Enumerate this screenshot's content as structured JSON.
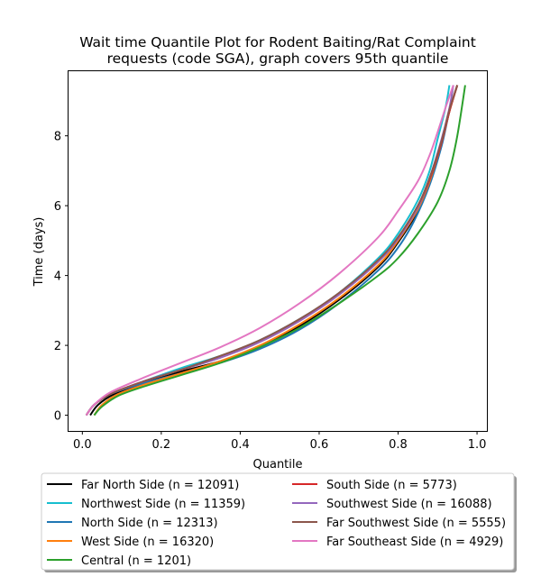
{
  "chart_data": {
    "type": "line",
    "title_lines": [
      "Wait time Quantile Plot for Rodent Baiting/Rat Complaint",
      "requests (code SGA), graph covers 95th quantile"
    ],
    "xlabel": "Quantile",
    "ylabel": "Time (days)",
    "xlim": [
      -0.035,
      1.025
    ],
    "ylim": [
      -0.45,
      9.85
    ],
    "x_ticks": [
      0.0,
      0.2,
      0.4,
      0.6,
      0.8,
      1.0
    ],
    "x_tick_labels": [
      "0.0",
      "0.2",
      "0.4",
      "0.6",
      "0.8",
      "1.0"
    ],
    "y_ticks": [
      0,
      2,
      4,
      6,
      8
    ],
    "y_tick_labels": [
      "0",
      "2",
      "4",
      "6",
      "8"
    ],
    "grid": false,
    "legend_position": "below plot, two columns",
    "series": [
      {
        "name": "Far North Side (n = 12091)",
        "color": "#000000",
        "x": [
          0.02,
          0.04,
          0.08,
          0.15,
          0.25,
          0.35,
          0.45,
          0.55,
          0.65,
          0.75,
          0.8,
          0.85,
          0.88,
          0.91,
          0.93,
          0.95
        ],
        "y": [
          0.0,
          0.3,
          0.6,
          0.9,
          1.25,
          1.55,
          1.95,
          2.55,
          3.3,
          4.25,
          4.95,
          5.85,
          6.7,
          7.8,
          8.7,
          9.45
        ]
      },
      {
        "name": "Northwest Side (n = 11359)",
        "color": "#17becf",
        "x": [
          0.01,
          0.03,
          0.07,
          0.15,
          0.25,
          0.35,
          0.45,
          0.55,
          0.65,
          0.75,
          0.8,
          0.85,
          0.88,
          0.9,
          0.92,
          0.93
        ],
        "y": [
          0.0,
          0.3,
          0.6,
          0.95,
          1.35,
          1.7,
          2.15,
          2.75,
          3.5,
          4.5,
          5.2,
          6.15,
          7.0,
          7.9,
          8.8,
          9.45
        ]
      },
      {
        "name": "North Side (n = 12313)",
        "color": "#1f77b4",
        "x": [
          0.01,
          0.03,
          0.07,
          0.15,
          0.25,
          0.35,
          0.45,
          0.55,
          0.65,
          0.75,
          0.8,
          0.84,
          0.88,
          0.91,
          0.93,
          0.95
        ],
        "y": [
          0.0,
          0.3,
          0.6,
          0.9,
          1.2,
          1.5,
          1.9,
          2.45,
          3.2,
          4.15,
          4.8,
          5.55,
          6.6,
          7.7,
          8.7,
          9.45
        ]
      },
      {
        "name": "West Side (n = 16320)",
        "color": "#ff7f0e",
        "x": [
          0.03,
          0.05,
          0.09,
          0.15,
          0.25,
          0.35,
          0.45,
          0.55,
          0.65,
          0.75,
          0.8,
          0.85,
          0.88,
          0.91,
          0.93,
          0.95
        ],
        "y": [
          0.0,
          0.3,
          0.6,
          0.85,
          1.2,
          1.55,
          2.0,
          2.6,
          3.35,
          4.3,
          5.0,
          5.9,
          6.7,
          7.8,
          8.7,
          9.45
        ]
      },
      {
        "name": "Central (n = 1201)",
        "color": "#2ca02c",
        "x": [
          0.03,
          0.05,
          0.09,
          0.15,
          0.25,
          0.35,
          0.45,
          0.55,
          0.65,
          0.75,
          0.8,
          0.85,
          0.9,
          0.93,
          0.95,
          0.97
        ],
        "y": [
          0.0,
          0.25,
          0.55,
          0.8,
          1.15,
          1.5,
          1.95,
          2.5,
          3.2,
          4.0,
          4.5,
          5.2,
          6.1,
          7.0,
          8.0,
          9.45
        ]
      },
      {
        "name": "South Side (n = 5773)",
        "color": "#d62728",
        "x": [
          0.01,
          0.03,
          0.07,
          0.15,
          0.25,
          0.35,
          0.45,
          0.55,
          0.65,
          0.75,
          0.8,
          0.85,
          0.88,
          0.91,
          0.93,
          0.95
        ],
        "y": [
          0.0,
          0.3,
          0.6,
          0.95,
          1.3,
          1.65,
          2.1,
          2.7,
          3.45,
          4.4,
          5.05,
          5.95,
          6.75,
          7.8,
          8.7,
          9.45
        ]
      },
      {
        "name": "Southwest Side (n = 16088)",
        "color": "#9467bd",
        "x": [
          0.01,
          0.03,
          0.07,
          0.15,
          0.25,
          0.35,
          0.45,
          0.55,
          0.65,
          0.75,
          0.8,
          0.85,
          0.88,
          0.91,
          0.93,
          0.94
        ],
        "y": [
          0.0,
          0.3,
          0.6,
          0.95,
          1.3,
          1.65,
          2.1,
          2.7,
          3.45,
          4.4,
          5.05,
          5.95,
          6.8,
          7.9,
          8.8,
          9.45
        ]
      },
      {
        "name": "Far Southwest Side (n = 5555)",
        "color": "#8c564b",
        "x": [
          0.01,
          0.03,
          0.07,
          0.15,
          0.25,
          0.35,
          0.45,
          0.55,
          0.65,
          0.75,
          0.8,
          0.85,
          0.88,
          0.91,
          0.93,
          0.95
        ],
        "y": [
          0.0,
          0.3,
          0.6,
          0.95,
          1.3,
          1.7,
          2.15,
          2.75,
          3.5,
          4.45,
          5.1,
          6.0,
          6.8,
          7.85,
          8.75,
          9.45
        ]
      },
      {
        "name": "Far Southeast Side (n = 4929)",
        "color": "#e377c2",
        "x": [
          0.01,
          0.03,
          0.07,
          0.15,
          0.25,
          0.35,
          0.45,
          0.55,
          0.65,
          0.75,
          0.8,
          0.85,
          0.88,
          0.9,
          0.92,
          0.94
        ],
        "y": [
          0.0,
          0.3,
          0.65,
          1.05,
          1.5,
          1.95,
          2.5,
          3.2,
          4.05,
          5.1,
          5.85,
          6.7,
          7.45,
          8.1,
          8.8,
          9.45
        ]
      }
    ]
  }
}
